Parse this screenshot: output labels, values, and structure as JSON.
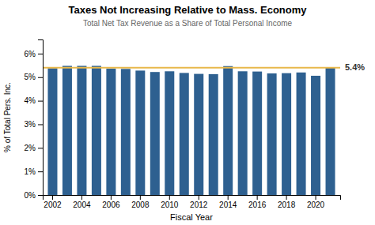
{
  "chart_data": {
    "type": "bar",
    "title": "Taxes Not Increasing Relative to Mass. Economy",
    "subtitle": "Total Net Tax Revenue as a Share of Total Personal Income",
    "x_label": "Fiscal Year",
    "y_label": "% of Total Pers. Inc.",
    "categories": [
      "2002",
      null,
      "2004",
      null,
      "2006",
      null,
      "2008",
      null,
      "2010",
      null,
      "2012",
      null,
      "2014",
      null,
      "2016",
      null,
      "2018",
      null,
      "2020",
      null
    ],
    "values": [
      5.38,
      5.48,
      5.48,
      5.48,
      5.36,
      5.35,
      5.28,
      5.22,
      5.25,
      5.18,
      5.14,
      5.13,
      5.47,
      5.25,
      5.24,
      5.16,
      5.17,
      5.2,
      5.06,
      5.4
    ],
    "color": "#2E6090",
    "ylim": [
      0,
      6.6
    ],
    "yticks": [
      {
        "value": 0,
        "label": "0%"
      },
      {
        "value": 1,
        "label": "1%"
      },
      {
        "value": 2,
        "label": "2%"
      },
      {
        "value": 3,
        "label": "3%"
      },
      {
        "value": 4,
        "label": "4%"
      },
      {
        "value": 5,
        "label": "5%"
      },
      {
        "value": 6,
        "label": "6%"
      }
    ],
    "grid": false,
    "annotations": [
      {
        "type": "hline",
        "y": 5.4,
        "text": "5.4%",
        "color": "#E8B84B"
      }
    ]
  }
}
